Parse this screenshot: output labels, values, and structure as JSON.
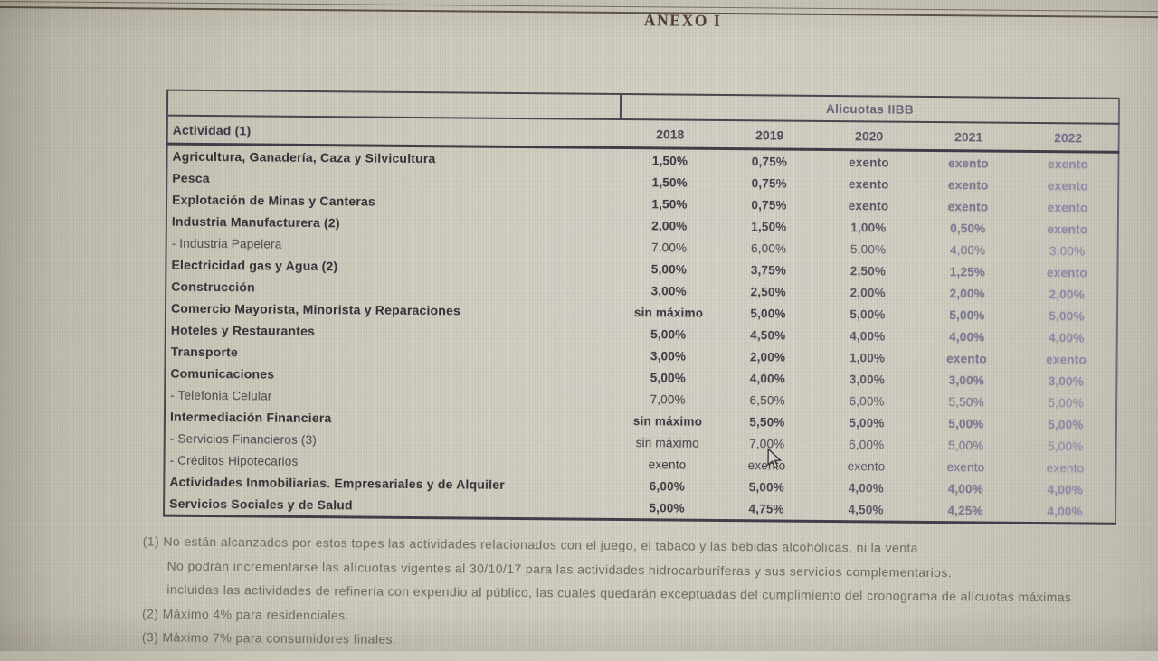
{
  "page": {
    "title": "ANEXO I"
  },
  "table": {
    "group_header": "Alicuotas IIBB",
    "col_header": "Actividad (1)",
    "years": [
      "2018",
      "2019",
      "2020",
      "2021",
      "2022"
    ],
    "rows": [
      {
        "name": "Agricultura, Ganadería, Caza y Silvicultura",
        "sub": false,
        "values": [
          "1,50%",
          "0,75%",
          "exento",
          "exento",
          "exento"
        ]
      },
      {
        "name": "Pesca",
        "sub": false,
        "values": [
          "1,50%",
          "0,75%",
          "exento",
          "exento",
          "exento"
        ]
      },
      {
        "name": "Explotación de Minas y Canteras",
        "sub": false,
        "values": [
          "1,50%",
          "0,75%",
          "exento",
          "exento",
          "exento"
        ]
      },
      {
        "name": "Industria Manufacturera (2)",
        "sub": false,
        "values": [
          "2,00%",
          "1,50%",
          "1,00%",
          "0,50%",
          "exento"
        ]
      },
      {
        "name": "- Industria Papelera",
        "sub": true,
        "values": [
          "7,00%",
          "6,00%",
          "5,00%",
          "4,00%",
          "3,00%"
        ]
      },
      {
        "name": "Electricidad gas y Agua (2)",
        "sub": false,
        "values": [
          "5,00%",
          "3,75%",
          "2,50%",
          "1,25%",
          "exento"
        ]
      },
      {
        "name": "Construcción",
        "sub": false,
        "values": [
          "3,00%",
          "2,50%",
          "2,00%",
          "2,00%",
          "2,00%"
        ]
      },
      {
        "name": "Comercio Mayorista, Minorista y Reparaciones",
        "sub": false,
        "values": [
          "sin máximo",
          "5,00%",
          "5,00%",
          "5,00%",
          "5,00%"
        ]
      },
      {
        "name": "Hoteles y Restaurantes",
        "sub": false,
        "values": [
          "5,00%",
          "4,50%",
          "4,00%",
          "4,00%",
          "4,00%"
        ]
      },
      {
        "name": "Transporte",
        "sub": false,
        "values": [
          "3,00%",
          "2,00%",
          "1,00%",
          "exento",
          "exento"
        ]
      },
      {
        "name": "Comunicaciones",
        "sub": false,
        "values": [
          "5,00%",
          "4,00%",
          "3,00%",
          "3,00%",
          "3,00%"
        ]
      },
      {
        "name": "- Telefonia Celular",
        "sub": true,
        "values": [
          "7,00%",
          "6,50%",
          "6,00%",
          "5,50%",
          "5,00%"
        ]
      },
      {
        "name": "Intermediación Financiera",
        "sub": false,
        "values": [
          "sin máximo",
          "5,50%",
          "5,00%",
          "5,00%",
          "5,00%"
        ]
      },
      {
        "name": "- Servicios Financieros (3)",
        "sub": true,
        "values": [
          "sin máximo",
          "7,00%",
          "6,00%",
          "5,00%",
          "5,00%"
        ]
      },
      {
        "name": "- Créditos Hipotecarios",
        "sub": true,
        "values": [
          "exento",
          "exento",
          "exento",
          "exento",
          "exento"
        ]
      },
      {
        "name": "Actividades Inmobiliarias. Empresariales y de Alquiler",
        "sub": false,
        "values": [
          "6,00%",
          "5,00%",
          "4,00%",
          "4,00%",
          "4,00%"
        ]
      },
      {
        "name": "Servicios Sociales y de Salud",
        "sub": false,
        "values": [
          "5,00%",
          "4,75%",
          "4,50%",
          "4,25%",
          "4,00%"
        ]
      }
    ]
  },
  "footnotes": [
    {
      "text": "(1) No están alcanzados por estos topes las actividades relacionados con el juego, el tabaco y las bebidas alcohólicas, ni la venta",
      "indent": false
    },
    {
      "text": "No podrán incrementarse las alícuotas vigentes al 30/10/17 para las actividades hidrocarburíferas y sus servicios complementarios.",
      "indent": true
    },
    {
      "text": "incluidas las actividades de refinería con expendio al público, las cuales quedarán exceptuadas del cumplimiento del cronograma de alícuotas máximas",
      "indent": true
    },
    {
      "text": "(2) Máximo 4% para residenciales.",
      "indent": false
    },
    {
      "text": "(3) Máximo 7% para consumidores finales.",
      "indent": false
    }
  ],
  "colors": {
    "background": "#c9c5b7",
    "table_border": "#45434c",
    "text_dark": "#2f2e33",
    "text_faded": "#8f8ba6",
    "title": "#4a3b2c",
    "footnote": "#6b675a"
  }
}
